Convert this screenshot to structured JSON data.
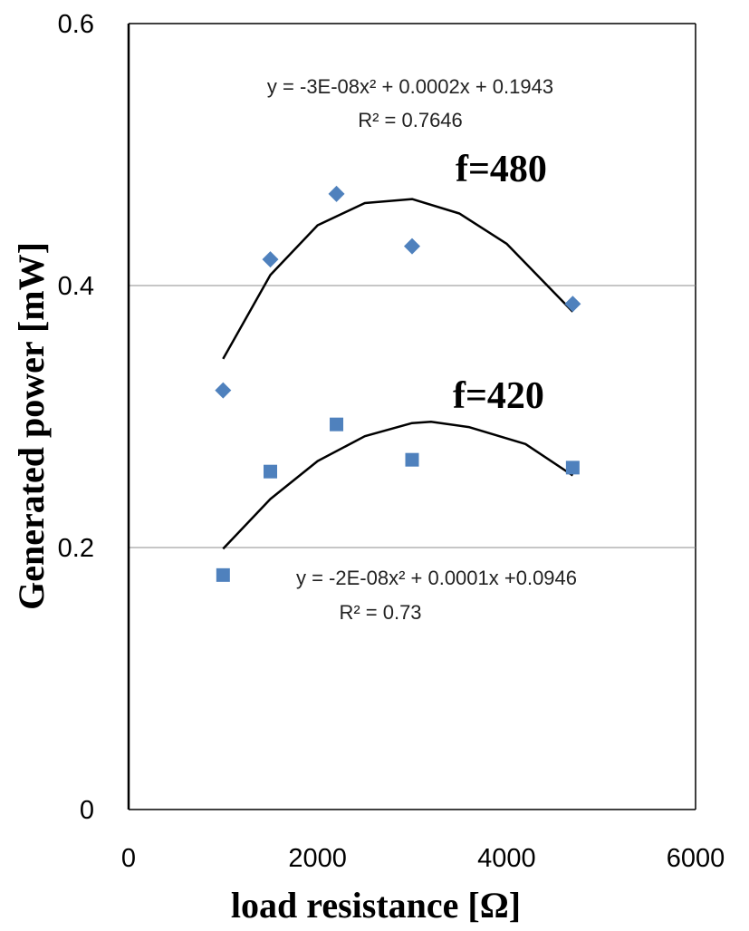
{
  "chart_data": {
    "type": "scatter",
    "xlabel": "load resistance [Ω]",
    "ylabel": "Generated power [mW]",
    "xlim": [
      0,
      6000
    ],
    "ylim": [
      0,
      0.6
    ],
    "x_ticks": [
      "0",
      "2000",
      "4000",
      "6000"
    ],
    "y_ticks": [
      "0",
      "0.2",
      "0.4",
      "0.6"
    ],
    "grid": "horizontal major lines",
    "marker_color": "#4F81BD",
    "series": [
      {
        "label": "f=480",
        "marker": "diamond",
        "x": [
          1000,
          1500,
          2200,
          3000,
          4700
        ],
        "y": [
          0.32,
          0.42,
          0.47,
          0.43,
          0.386
        ],
        "trendline": {
          "type": "polynomial",
          "equation": "y = -3E-08x² + 0.0002x + 0.1943",
          "r_squared": "R² = 0.7646",
          "x_range": [
            1000,
            4700
          ],
          "curve_points": [
            [
              1000,
              0.344
            ],
            [
              1500,
              0.408
            ],
            [
              2000,
              0.446
            ],
            [
              2500,
              0.463
            ],
            [
              3000,
              0.466
            ],
            [
              3500,
              0.455
            ],
            [
              4000,
              0.432
            ],
            [
              4700,
              0.38
            ]
          ]
        }
      },
      {
        "label": "f=420",
        "marker": "square",
        "x": [
          1000,
          1500,
          2200,
          3000,
          4700
        ],
        "y": [
          0.179,
          0.258,
          0.294,
          0.267,
          0.261
        ],
        "trendline": {
          "type": "polynomial",
          "equation": "y = -2E-08x² + 0.0001x +0.0946",
          "r_squared": "R² = 0.73",
          "x_range": [
            1000,
            4700
          ],
          "curve_points": [
            [
              1000,
              0.199
            ],
            [
              1500,
              0.237
            ],
            [
              2000,
              0.266
            ],
            [
              2500,
              0.285
            ],
            [
              3000,
              0.295
            ],
            [
              3200,
              0.296
            ],
            [
              3600,
              0.292
            ],
            [
              4200,
              0.279
            ],
            [
              4700,
              0.255
            ]
          ]
        }
      }
    ]
  }
}
